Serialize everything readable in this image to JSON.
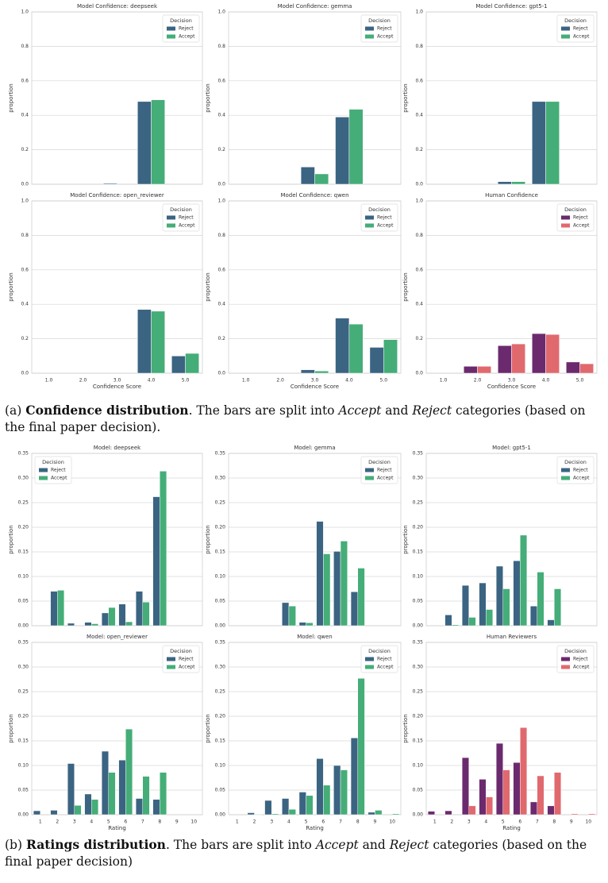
{
  "chart_data": [
    {
      "type": "bar",
      "title": "Model Confidence: deepseek",
      "ylabel": "proportion",
      "ylim": [
        0,
        1
      ],
      "yticks": [
        {
          "value": 0,
          "label": "0.0"
        },
        0.2,
        0.4,
        0.6,
        0.8,
        {
          "value": 1,
          "label": "1.0"
        }
      ],
      "grid": true,
      "legend": "upper right",
      "legend_title": "Decision",
      "series": [
        {
          "name": "Reject",
          "color": "#3b6482",
          "values": [
            0,
            0,
            0.005,
            0.48,
            0
          ]
        },
        {
          "name": "Accept",
          "color": "#45ad78",
          "values": [
            0,
            0,
            0,
            0.49,
            0
          ]
        }
      ]
    },
    {
      "type": "bar",
      "title": "Model Confidence: gemma",
      "ylabel": "proportion",
      "ylim": [
        0,
        1
      ],
      "yticks": [
        {
          "value": 0,
          "label": "0.0"
        },
        0.2,
        0.4,
        0.6,
        0.8,
        {
          "value": 1,
          "label": "1.0"
        }
      ],
      "grid": true,
      "legend": "upper right",
      "legend_title": "Decision",
      "series": [
        {
          "name": "Reject",
          "color": "#3b6482",
          "values": [
            0,
            0,
            0.1,
            0.39,
            0
          ]
        },
        {
          "name": "Accept",
          "color": "#45ad78",
          "values": [
            0,
            0,
            0.06,
            0.435,
            0
          ]
        }
      ]
    },
    {
      "type": "bar",
      "title": "Model Confidence: gpt5-1",
      "ylabel": "proportion",
      "ylim": [
        0,
        1
      ],
      "yticks": [
        {
          "value": 0,
          "label": "0.0"
        },
        0.2,
        0.4,
        0.6,
        0.8,
        {
          "value": 1,
          "label": "1.0"
        }
      ],
      "grid": true,
      "legend": "upper right",
      "legend_title": "Decision",
      "series": [
        {
          "name": "Reject",
          "color": "#3b6482",
          "values": [
            0,
            0,
            0.015,
            0.48,
            0
          ]
        },
        {
          "name": "Accept",
          "color": "#45ad78",
          "values": [
            0,
            0,
            0.015,
            0.48,
            0
          ]
        }
      ]
    },
    {
      "type": "bar",
      "title": "Model Confidence: open_reviewer",
      "ylabel": "proportion",
      "xlabel": "Confidence Score",
      "categories": [
        "1.0",
        "2.0",
        "3.0",
        "4.0",
        "5.0"
      ],
      "ylim": [
        0,
        1
      ],
      "yticks": [
        {
          "value": 0,
          "label": "0.0"
        },
        0.2,
        0.4,
        0.6,
        0.8,
        {
          "value": 1,
          "label": "1.0"
        }
      ],
      "grid": true,
      "legend": "upper right",
      "legend_title": "Decision",
      "series": [
        {
          "name": "Reject",
          "color": "#3b6482",
          "values": [
            0,
            0,
            0,
            0.37,
            0.1
          ]
        },
        {
          "name": "Accept",
          "color": "#45ad78",
          "values": [
            0,
            0,
            0,
            0.36,
            0.115
          ]
        }
      ]
    },
    {
      "type": "bar",
      "title": "Model Confidence: qwen",
      "ylabel": "proportion",
      "xlabel": "Confidence Score",
      "categories": [
        "1.0",
        "2.0",
        "3.0",
        "4.0",
        "5.0"
      ],
      "ylim": [
        0,
        1
      ],
      "yticks": [
        {
          "value": 0,
          "label": "0.0"
        },
        0.2,
        0.4,
        0.6,
        0.8,
        {
          "value": 1,
          "label": "1.0"
        }
      ],
      "grid": true,
      "legend": "upper right",
      "legend_title": "Decision",
      "series": [
        {
          "name": "Reject",
          "color": "#3b6482",
          "values": [
            0,
            0,
            0.02,
            0.32,
            0.15
          ]
        },
        {
          "name": "Accept",
          "color": "#45ad78",
          "values": [
            0,
            0,
            0.013,
            0.285,
            0.195
          ]
        }
      ]
    },
    {
      "type": "bar",
      "title": "Human Confidence",
      "ylabel": "proportion",
      "xlabel": "Confidence Score",
      "categories": [
        "1.0",
        "2.0",
        "3.0",
        "4.0",
        "5.0"
      ],
      "ylim": [
        0,
        1
      ],
      "yticks": [
        {
          "value": 0,
          "label": "0.0"
        },
        0.2,
        0.4,
        0.6,
        0.8,
        {
          "value": 1,
          "label": "1.0"
        }
      ],
      "grid": true,
      "legend": "upper right",
      "legend_title": "Decision",
      "series": [
        {
          "name": "Reject",
          "color": "#6b2a6e",
          "values": [
            0,
            0.04,
            0.16,
            0.23,
            0.065
          ]
        },
        {
          "name": "Accept",
          "color": "#e0696e",
          "values": [
            0,
            0.04,
            0.17,
            0.225,
            0.055
          ]
        }
      ]
    },
    {
      "type": "bar",
      "title": "Model: deepseek",
      "ylabel": "proportion",
      "ylim": [
        0,
        0.35
      ],
      "yticks": [
        {
          "value": 0,
          "label": "0.00"
        },
        {
          "value": 0.05,
          "label": "0.05"
        },
        {
          "value": 0.1,
          "label": "0.10"
        },
        {
          "value": 0.15,
          "label": "0.15"
        },
        {
          "value": 0.2,
          "label": "0.20"
        },
        {
          "value": 0.25,
          "label": "0.25"
        },
        {
          "value": 0.3,
          "label": "0.30"
        },
        {
          "value": 0.35,
          "label": "0.35"
        }
      ],
      "grid": true,
      "legend": "upper left",
      "legend_title": "Decision",
      "series": [
        {
          "name": "Reject",
          "color": "#3b6482",
          "values": [
            0,
            0.07,
            0.005,
            0.007,
            0.026,
            0.044,
            0.07,
            0.262,
            0,
            0
          ]
        },
        {
          "name": "Accept",
          "color": "#45ad78",
          "values": [
            0,
            0.072,
            0,
            0.004,
            0.037,
            0.008,
            0.048,
            0.314,
            0,
            0
          ]
        }
      ]
    },
    {
      "type": "bar",
      "title": "Model: gemma",
      "ylabel": "proportion",
      "ylim": [
        0,
        0.35
      ],
      "yticks": [
        {
          "value": 0,
          "label": "0.00"
        },
        {
          "value": 0.05,
          "label": "0.05"
        },
        {
          "value": 0.1,
          "label": "0.10"
        },
        {
          "value": 0.15,
          "label": "0.15"
        },
        {
          "value": 0.2,
          "label": "0.20"
        },
        {
          "value": 0.25,
          "label": "0.25"
        },
        {
          "value": 0.3,
          "label": "0.30"
        },
        {
          "value": 0.35,
          "label": "0.35"
        }
      ],
      "grid": true,
      "legend": "upper right",
      "legend_title": "Decision",
      "series": [
        {
          "name": "Reject",
          "color": "#3b6482",
          "values": [
            0,
            0,
            0,
            0.047,
            0.007,
            0.212,
            0.151,
            0.069,
            0,
            0
          ]
        },
        {
          "name": "Accept",
          "color": "#45ad78",
          "values": [
            0,
            0,
            0,
            0.04,
            0.006,
            0.146,
            0.172,
            0.117,
            0,
            0
          ]
        }
      ]
    },
    {
      "type": "bar",
      "title": "Model: gpt5-1",
      "ylabel": "proportion",
      "ylim": [
        0,
        0.35
      ],
      "yticks": [
        {
          "value": 0,
          "label": "0.00"
        },
        {
          "value": 0.05,
          "label": "0.05"
        },
        {
          "value": 0.1,
          "label": "0.10"
        },
        {
          "value": 0.15,
          "label": "0.15"
        },
        {
          "value": 0.2,
          "label": "0.20"
        },
        {
          "value": 0.25,
          "label": "0.25"
        },
        {
          "value": 0.3,
          "label": "0.30"
        },
        {
          "value": 0.35,
          "label": "0.35"
        }
      ],
      "grid": true,
      "legend": "upper right",
      "legend_title": "Decision",
      "series": [
        {
          "name": "Reject",
          "color": "#3b6482",
          "values": [
            0,
            0.022,
            0.082,
            0.087,
            0.121,
            0.132,
            0.04,
            0.012,
            0,
            0
          ]
        },
        {
          "name": "Accept",
          "color": "#45ad78",
          "values": [
            0,
            0.002,
            0.017,
            0.033,
            0.075,
            0.184,
            0.109,
            0.075,
            0,
            0
          ]
        }
      ]
    },
    {
      "type": "bar",
      "title": "Model: open_reviewer",
      "ylabel": "proportion",
      "xlabel": "Rating",
      "categories": [
        "1",
        "2",
        "3",
        "4",
        "5",
        "6",
        "7",
        "8",
        "9",
        "10"
      ],
      "ylim": [
        0,
        0.35
      ],
      "yticks": [
        {
          "value": 0,
          "label": "0.00"
        },
        {
          "value": 0.05,
          "label": "0.05"
        },
        {
          "value": 0.1,
          "label": "0.10"
        },
        {
          "value": 0.15,
          "label": "0.15"
        },
        {
          "value": 0.2,
          "label": "0.20"
        },
        {
          "value": 0.25,
          "label": "0.25"
        },
        {
          "value": 0.3,
          "label": "0.30"
        },
        {
          "value": 0.35,
          "label": "0.35"
        }
      ],
      "grid": true,
      "legend": "upper right",
      "legend_title": "Decision",
      "series": [
        {
          "name": "Reject",
          "color": "#3b6482",
          "values": [
            0.008,
            0.009,
            0.104,
            0.042,
            0.129,
            0.111,
            0.033,
            0.031,
            0,
            0
          ]
        },
        {
          "name": "Accept",
          "color": "#45ad78",
          "values": [
            0,
            0,
            0.019,
            0.031,
            0.086,
            0.174,
            0.078,
            0.086,
            0,
            0
          ]
        }
      ]
    },
    {
      "type": "bar",
      "title": "Model: qwen",
      "ylabel": "proportion",
      "xlabel": "Rating",
      "categories": [
        "1",
        "2",
        "3",
        "4",
        "5",
        "6",
        "7",
        "8",
        "9",
        "10"
      ],
      "ylim": [
        0,
        0.35
      ],
      "yticks": [
        {
          "value": 0,
          "label": "0.00"
        },
        {
          "value": 0.05,
          "label": "0.05"
        },
        {
          "value": 0.1,
          "label": "0.10"
        },
        {
          "value": 0.15,
          "label": "0.15"
        },
        {
          "value": 0.2,
          "label": "0.20"
        },
        {
          "value": 0.25,
          "label": "0.25"
        },
        {
          "value": 0.3,
          "label": "0.30"
        },
        {
          "value": 0.35,
          "label": "0.35"
        }
      ],
      "grid": true,
      "legend": "upper right",
      "legend_title": "Decision",
      "series": [
        {
          "name": "Reject",
          "color": "#3b6482",
          "values": [
            0,
            0.004,
            0.029,
            0.033,
            0.046,
            0.114,
            0.1,
            0.156,
            0.005,
            0
          ]
        },
        {
          "name": "Accept",
          "color": "#45ad78",
          "values": [
            0,
            0.001,
            0.002,
            0.011,
            0.039,
            0.06,
            0.091,
            0.277,
            0.009,
            0.002
          ]
        }
      ]
    },
    {
      "type": "bar",
      "title": "Human Reviewers",
      "ylabel": "proportion",
      "xlabel": "Rating",
      "categories": [
        "1",
        "2",
        "3",
        "4",
        "5",
        "6",
        "7",
        "8",
        "9",
        "10"
      ],
      "ylim": [
        0,
        0.35
      ],
      "yticks": [
        {
          "value": 0,
          "label": "0.00"
        },
        {
          "value": 0.05,
          "label": "0.05"
        },
        {
          "value": 0.1,
          "label": "0.10"
        },
        {
          "value": 0.15,
          "label": "0.15"
        },
        {
          "value": 0.2,
          "label": "0.20"
        },
        {
          "value": 0.25,
          "label": "0.25"
        },
        {
          "value": 0.3,
          "label": "0.30"
        },
        {
          "value": 0.35,
          "label": "0.35"
        }
      ],
      "grid": true,
      "legend": "upper right",
      "legend_title": "Decision",
      "series": [
        {
          "name": "Reject",
          "color": "#6b2a6e",
          "values": [
            0.007,
            0.008,
            0.116,
            0.072,
            0.145,
            0.106,
            0.026,
            0.018,
            0,
            0
          ]
        },
        {
          "name": "Accept",
          "color": "#e0696e",
          "values": [
            0,
            0,
            0.018,
            0.036,
            0.091,
            0.177,
            0.079,
            0.086,
            0.002,
            0.002
          ]
        }
      ]
    }
  ],
  "captions": [
    [
      "(a) ",
      "Confidence distribution",
      ". The bars are split into ",
      "Accept",
      " and ",
      "Reject",
      " categories (based on the final paper decision)."
    ],
    [
      "(b) ",
      "Ratings distribution",
      ". The bars are split into ",
      "Accept",
      " and ",
      "Reject",
      " categories (based on the final paper decision)"
    ]
  ]
}
